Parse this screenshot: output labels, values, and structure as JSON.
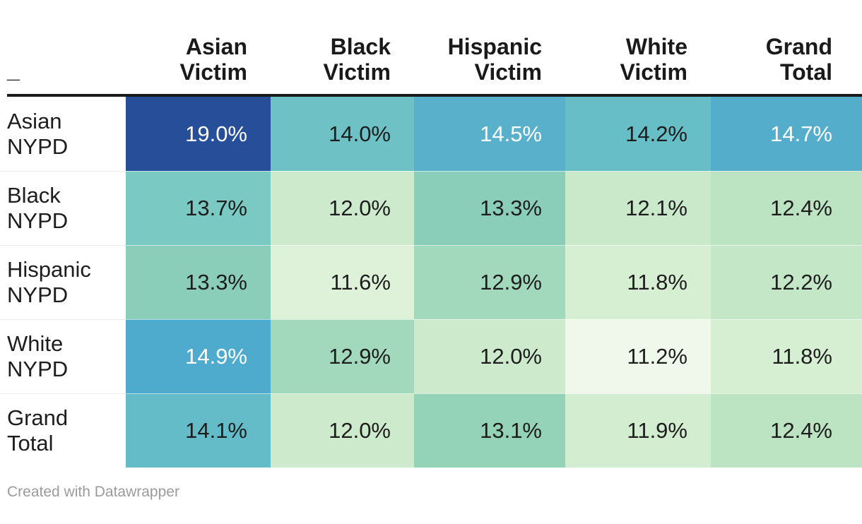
{
  "colors": {
    "background": "#ffffff",
    "header_rule": "#1a1a1a",
    "row_separator": "#eeeeee",
    "text_dark": "#1d1d1d",
    "text_light": "#ffffff",
    "footer_text": "#9b9b9b"
  },
  "table": {
    "corner_label": "_",
    "col_headers": [
      "Asian\nVictim",
      "Black\nVictim",
      "Hispanic\nVictim",
      "White\nVictim",
      "Grand\nTotal"
    ],
    "rows": [
      {
        "label": "Asian\nNYPD",
        "cells": [
          {
            "label": "19.0%",
            "bg": "#274e98",
            "fg": "#ffffff"
          },
          {
            "label": "14.0%",
            "bg": "#6ec2c6",
            "fg": "#1d1d1d"
          },
          {
            "label": "14.5%",
            "bg": "#58b0cb",
            "fg": "#ffffff"
          },
          {
            "label": "14.2%",
            "bg": "#68bec7",
            "fg": "#1d1d1d"
          },
          {
            "label": "14.7%",
            "bg": "#55adcc",
            "fg": "#ffffff"
          }
        ]
      },
      {
        "label": "Black\nNYPD",
        "cells": [
          {
            "label": "13.7%",
            "bg": "#7ac9c3",
            "fg": "#1d1d1d"
          },
          {
            "label": "12.0%",
            "bg": "#cdeacc",
            "fg": "#1d1d1d"
          },
          {
            "label": "13.3%",
            "bg": "#8aceba",
            "fg": "#1d1d1d"
          },
          {
            "label": "12.1%",
            "bg": "#c9e9ca",
            "fg": "#1d1d1d"
          },
          {
            "label": "12.4%",
            "bg": "#bce3c2",
            "fg": "#1d1d1d"
          }
        ]
      },
      {
        "label": "Hispanic\nNYPD",
        "cells": [
          {
            "label": "13.3%",
            "bg": "#8aceba",
            "fg": "#1d1d1d"
          },
          {
            "label": "11.6%",
            "bg": "#def2d9",
            "fg": "#1d1d1d"
          },
          {
            "label": "12.9%",
            "bg": "#a2d9bc",
            "fg": "#1d1d1d"
          },
          {
            "label": "11.8%",
            "bg": "#d6efd3",
            "fg": "#1d1d1d"
          },
          {
            "label": "12.2%",
            "bg": "#c4e7c7",
            "fg": "#1d1d1d"
          }
        ]
      },
      {
        "label": "White\nNYPD",
        "cells": [
          {
            "label": "14.9%",
            "bg": "#4fabce",
            "fg": "#ffffff"
          },
          {
            "label": "12.9%",
            "bg": "#a2d9bc",
            "fg": "#1d1d1d"
          },
          {
            "label": "12.0%",
            "bg": "#cdeacc",
            "fg": "#1d1d1d"
          },
          {
            "label": "11.2%",
            "bg": "#eff8ea",
            "fg": "#1d1d1d"
          },
          {
            "label": "11.8%",
            "bg": "#d6efd3",
            "fg": "#1d1d1d"
          }
        ]
      },
      {
        "label": "Grand\nTotal",
        "cells": [
          {
            "label": "14.1%",
            "bg": "#63bcc8",
            "fg": "#1d1d1d"
          },
          {
            "label": "12.0%",
            "bg": "#cdeacc",
            "fg": "#1d1d1d"
          },
          {
            "label": "13.1%",
            "bg": "#94d3b8",
            "fg": "#1d1d1d"
          },
          {
            "label": "11.9%",
            "bg": "#d2edcf",
            "fg": "#1d1d1d"
          },
          {
            "label": "12.4%",
            "bg": "#bce3c2",
            "fg": "#1d1d1d"
          }
        ]
      }
    ]
  },
  "footer": {
    "credit": "Created with Datawrapper"
  },
  "chart_data": {
    "type": "heatmap",
    "x_categories": [
      "Asian Victim",
      "Black Victim",
      "Hispanic Victim",
      "White Victim",
      "Grand Total"
    ],
    "y_categories": [
      "Asian NYPD",
      "Black NYPD",
      "Hispanic NYPD",
      "White NYPD",
      "Grand Total"
    ],
    "values_percent": [
      [
        19.0,
        14.0,
        14.5,
        14.2,
        14.7
      ],
      [
        13.7,
        12.0,
        13.3,
        12.1,
        12.4
      ],
      [
        13.3,
        11.6,
        12.9,
        11.8,
        12.2
      ],
      [
        14.9,
        12.9,
        12.0,
        11.2,
        11.8
      ],
      [
        14.1,
        12.0,
        13.1,
        11.9,
        12.4
      ]
    ],
    "unit": "%",
    "value_domain": [
      11.2,
      19.0
    ],
    "color_scale": {
      "low": "#eff8ea",
      "mid": "#6ec2c6",
      "high": "#274e98"
    },
    "legend": "none",
    "grid": "off",
    "source_note": "Created with Datawrapper"
  }
}
